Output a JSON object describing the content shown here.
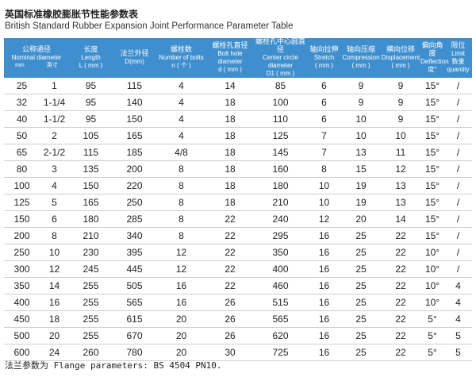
{
  "header": {
    "title": "英国标准橡胶膨胀节性能参数表",
    "subtitle": "British Standard Rubber Expansion Joint Performance Parameter Table"
  },
  "table": {
    "columns": [
      {
        "lines": [
          "公称通径",
          "Nominal diameter"
        ],
        "subcols": [
          "mm",
          "英寸"
        ]
      },
      {
        "lines": [
          "长度",
          "Length",
          "L ( mm )"
        ]
      },
      {
        "lines": [
          "法兰外径",
          "D(mm)"
        ]
      },
      {
        "lines": [
          "螺栓数",
          "Number of bolts",
          "n ( 个 )"
        ]
      },
      {
        "lines": [
          "螺栓孔直径",
          "Bolt hole diameter",
          "d ( mm )"
        ]
      },
      {
        "lines": [
          "螺栓孔中心圆直径",
          "Center circle diameter",
          "D1 ( mm )"
        ]
      },
      {
        "lines": [
          "轴向拉伸",
          "Stretch",
          "( mm )"
        ]
      },
      {
        "lines": [
          "轴向压缩",
          "Compression",
          "( mm )"
        ]
      },
      {
        "lines": [
          "横向位移",
          "Displacement",
          "( mm )"
        ]
      },
      {
        "lines": [
          "偏向角度",
          "Deflection",
          "度°"
        ]
      },
      {
        "lines": [
          "限位",
          "Limit",
          "数量 quantity"
        ]
      }
    ],
    "rows": [
      [
        "25",
        "1",
        "95",
        "115",
        "4",
        "14",
        "85",
        "6",
        "9",
        "9",
        "15°",
        "/"
      ],
      [
        "32",
        "1-1/4",
        "95",
        "140",
        "4",
        "18",
        "100",
        "6",
        "9",
        "9",
        "15°",
        "/"
      ],
      [
        "40",
        "1-1/2",
        "95",
        "150",
        "4",
        "18",
        "110",
        "6",
        "10",
        "9",
        "15°",
        "/"
      ],
      [
        "50",
        "2",
        "105",
        "165",
        "4",
        "18",
        "125",
        "7",
        "10",
        "10",
        "15°",
        "/"
      ],
      [
        "65",
        "2-1/2",
        "115",
        "185",
        "4/8",
        "18",
        "145",
        "7",
        "13",
        "11",
        "15°",
        "/"
      ],
      [
        "80",
        "3",
        "135",
        "200",
        "8",
        "18",
        "160",
        "8",
        "15",
        "12",
        "15°",
        "/"
      ],
      [
        "100",
        "4",
        "150",
        "220",
        "8",
        "18",
        "180",
        "10",
        "19",
        "13",
        "15°",
        "/"
      ],
      [
        "125",
        "5",
        "165",
        "250",
        "8",
        "18",
        "210",
        "10",
        "19",
        "13",
        "15°",
        "/"
      ],
      [
        "150",
        "6",
        "180",
        "285",
        "8",
        "22",
        "240",
        "12",
        "20",
        "14",
        "15°",
        "/"
      ],
      [
        "200",
        "8",
        "210",
        "340",
        "8",
        "22",
        "295",
        "16",
        "25",
        "22",
        "15°",
        "/"
      ],
      [
        "250",
        "10",
        "230",
        "395",
        "12",
        "22",
        "350",
        "16",
        "25",
        "22",
        "10°",
        "/"
      ],
      [
        "300",
        "12",
        "245",
        "445",
        "12",
        "22",
        "400",
        "16",
        "25",
        "22",
        "10°",
        "/"
      ],
      [
        "350",
        "14",
        "255",
        "505",
        "16",
        "22",
        "460",
        "16",
        "25",
        "22",
        "10°",
        "4"
      ],
      [
        "400",
        "16",
        "255",
        "565",
        "16",
        "26",
        "515",
        "16",
        "25",
        "22",
        "10°",
        "4"
      ],
      [
        "450",
        "18",
        "255",
        "615",
        "20",
        "26",
        "565",
        "16",
        "25",
        "22",
        "5°",
        "4"
      ],
      [
        "500",
        "20",
        "255",
        "670",
        "20",
        "26",
        "620",
        "16",
        "25",
        "22",
        "5°",
        "5"
      ],
      [
        "600",
        "24",
        "260",
        "780",
        "20",
        "30",
        "725",
        "16",
        "25",
        "22",
        "5°",
        "5"
      ]
    ]
  },
  "footer": {
    "note": "法兰参数为 Flange parameters: BS 4504 PN10."
  }
}
